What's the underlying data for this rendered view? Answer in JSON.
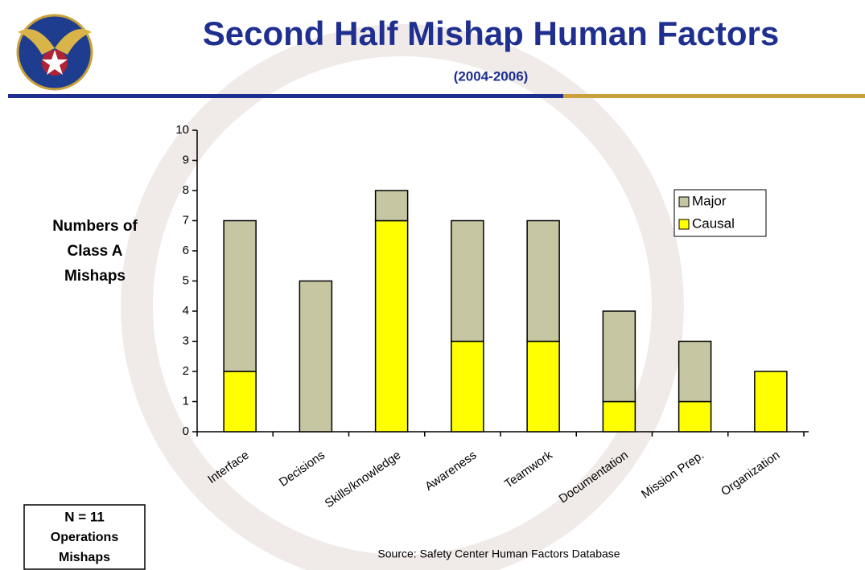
{
  "chart_data": {
    "type": "stacked-bar",
    "title": "Second Half Mishap Human Factors",
    "subtitle": "(2004-2006)",
    "y_label": [
      "Numbers of",
      "Class A",
      "Mishaps"
    ],
    "categories": [
      "Interface",
      "Decisions",
      "Skills/knowledge",
      "Awareness",
      "Teamwork",
      "Documentation",
      "Mission Prep.",
      "Organization"
    ],
    "series": [
      {
        "name": "Causal",
        "color": "#ffff00",
        "values": [
          2,
          0,
          7,
          3,
          3,
          1,
          1,
          2
        ]
      },
      {
        "name": "Major",
        "color": "#c6c6a2",
        "values": [
          5,
          5,
          1,
          4,
          4,
          3,
          2,
          0
        ]
      }
    ],
    "ylim": [
      0,
      10
    ],
    "yticks": [
      0,
      1,
      2,
      3,
      4,
      5,
      6,
      7,
      8,
      9,
      10
    ],
    "legend": "upper-right",
    "note": [
      "N = 11",
      "Operations",
      "Mishaps"
    ],
    "source": "Source: Safety Center Human Factors Database"
  }
}
